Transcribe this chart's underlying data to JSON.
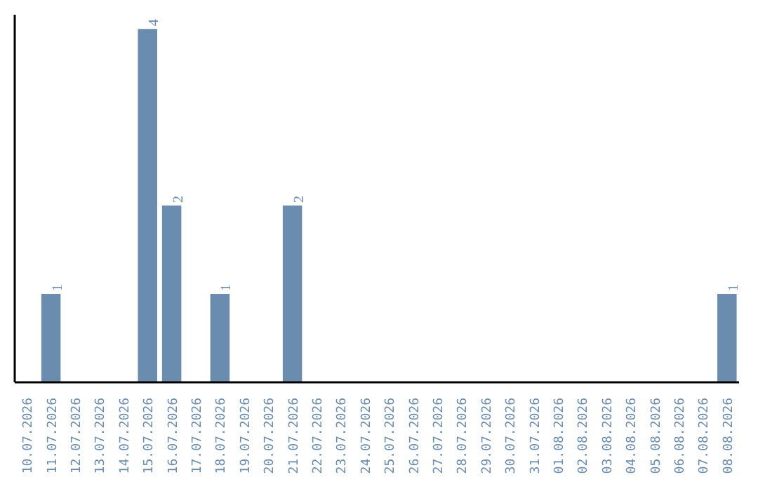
{
  "chart_data": {
    "type": "bar",
    "categories": [
      "10.07.2026",
      "11.07.2026",
      "12.07.2026",
      "13.07.2026",
      "14.07.2026",
      "15.07.2026",
      "16.07.2026",
      "17.07.2026",
      "18.07.2026",
      "19.07.2026",
      "20.07.2026",
      "21.07.2026",
      "22.07.2026",
      "23.07.2026",
      "24.07.2026",
      "25.07.2026",
      "26.07.2026",
      "27.07.2026",
      "28.07.2026",
      "29.07.2026",
      "30.07.2026",
      "31.07.2026",
      "01.08.2026",
      "02.08.2026",
      "03.08.2026",
      "04.08.2026",
      "05.08.2026",
      "06.08.2026",
      "07.08.2026",
      "08.08.2026"
    ],
    "values": [
      0,
      1,
      0,
      0,
      0,
      4,
      2,
      0,
      1,
      0,
      0,
      2,
      0,
      0,
      0,
      0,
      0,
      0,
      0,
      0,
      0,
      0,
      0,
      0,
      0,
      0,
      0,
      0,
      0,
      1
    ],
    "value_labels": [
      null,
      "1",
      null,
      null,
      null,
      "4",
      "2",
      null,
      "1",
      null,
      null,
      "2",
      null,
      null,
      null,
      null,
      null,
      null,
      null,
      null,
      null,
      null,
      null,
      null,
      null,
      null,
      null,
      null,
      null,
      "1"
    ],
    "color": "#6a8caf",
    "grid": false
  }
}
